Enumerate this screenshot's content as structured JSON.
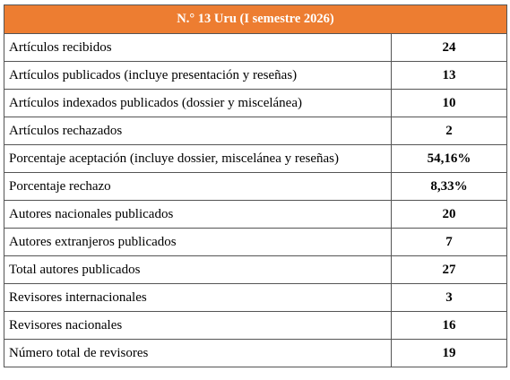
{
  "header": {
    "title": "N.° 13 Uru (I semestre 2026)"
  },
  "table": {
    "rows": [
      [
        "Artículos recibidos",
        "24"
      ],
      [
        "Artículos publicados (incluye presentación y reseñas)",
        "13"
      ],
      [
        "Artículos indexados publicados (dossier y miscelánea)",
        "10"
      ],
      [
        "Artículos rechazados",
        "2"
      ],
      [
        "Porcentaje aceptación (incluye dossier, miscelánea y reseñas)",
        "54,16%"
      ],
      [
        "Porcentaje rechazo",
        "8,33%"
      ],
      [
        "Autores nacionales publicados",
        "20"
      ],
      [
        "Autores extranjeros publicados",
        "7"
      ],
      [
        "Total autores publicados",
        "27"
      ],
      [
        "Revisores internacionales",
        "3"
      ],
      [
        "Revisores nacionales",
        "16"
      ],
      [
        "Número total de revisores",
        "19"
      ]
    ]
  }
}
